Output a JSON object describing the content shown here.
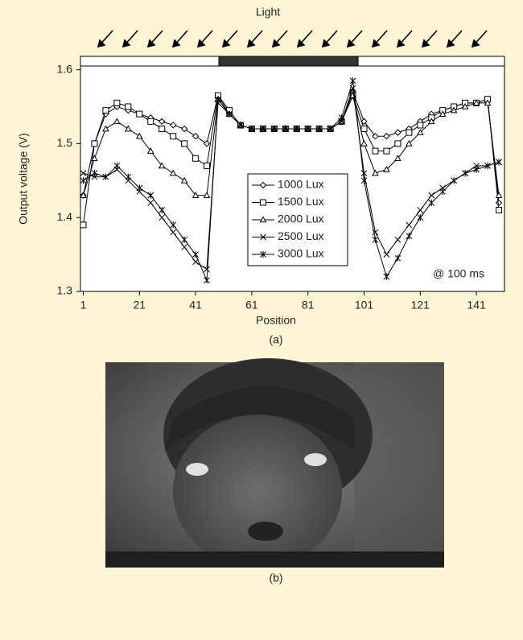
{
  "chart_data": {
    "type": "line",
    "title": "Light",
    "subtitle": "(a)",
    "annotation": "@ 100 ms",
    "xlabel": "Position",
    "ylabel": "Output voltage (V)",
    "xlim": [
      0,
      151
    ],
    "ylim": [
      1.3,
      1.605
    ],
    "xticks": [
      1,
      21,
      41,
      61,
      81,
      101,
      121,
      141
    ],
    "yticks": [
      {
        "value": 1.3,
        "label": "1.3"
      },
      {
        "value": 1.4,
        "label": "1.4"
      },
      {
        "value": 1.5,
        "label": "1.5"
      },
      {
        "value": 1.6,
        "label": "1.6"
      }
    ],
    "grid": false,
    "x": [
      1,
      5,
      9,
      13,
      17,
      21,
      25,
      29,
      33,
      37,
      41,
      45,
      49,
      53,
      57,
      61,
      65,
      69,
      73,
      77,
      81,
      85,
      89,
      93,
      97,
      101,
      105,
      109,
      113,
      117,
      121,
      125,
      129,
      133,
      137,
      141,
      145,
      149
    ],
    "series": [
      {
        "name": "1000 Lux",
        "color": "#000000",
        "marker": "diamond",
        "values": [
          1.43,
          1.5,
          1.54,
          1.55,
          1.545,
          1.54,
          1.535,
          1.53,
          1.525,
          1.52,
          1.51,
          1.5,
          1.565,
          1.54,
          1.525,
          1.52,
          1.52,
          1.52,
          1.52,
          1.52,
          1.52,
          1.52,
          1.52,
          1.53,
          1.57,
          1.53,
          1.51,
          1.51,
          1.515,
          1.52,
          1.53,
          1.54,
          1.545,
          1.55,
          1.555,
          1.555,
          1.56,
          1.42
        ]
      },
      {
        "name": "1500 Lux",
        "color": "#000000",
        "marker": "square",
        "values": [
          1.39,
          1.5,
          1.545,
          1.555,
          1.55,
          1.54,
          1.53,
          1.52,
          1.51,
          1.5,
          1.48,
          1.47,
          1.565,
          1.545,
          1.525,
          1.52,
          1.52,
          1.52,
          1.52,
          1.52,
          1.52,
          1.52,
          1.52,
          1.53,
          1.565,
          1.52,
          1.49,
          1.49,
          1.5,
          1.515,
          1.525,
          1.535,
          1.545,
          1.55,
          1.555,
          1.555,
          1.56,
          1.41
        ]
      },
      {
        "name": "2000 Lux",
        "color": "#000000",
        "marker": "triangle",
        "values": [
          1.43,
          1.48,
          1.52,
          1.53,
          1.52,
          1.51,
          1.49,
          1.47,
          1.46,
          1.45,
          1.43,
          1.43,
          1.56,
          1.54,
          1.525,
          1.52,
          1.52,
          1.52,
          1.52,
          1.52,
          1.52,
          1.52,
          1.52,
          1.53,
          1.565,
          1.5,
          1.46,
          1.465,
          1.48,
          1.5,
          1.515,
          1.53,
          1.54,
          1.545,
          1.55,
          1.555,
          1.555,
          1.43
        ]
      },
      {
        "name": "2500 Lux",
        "color": "#000000",
        "marker": "x",
        "values": [
          1.46,
          1.455,
          1.455,
          1.465,
          1.45,
          1.435,
          1.42,
          1.4,
          1.38,
          1.36,
          1.34,
          1.33,
          1.555,
          1.54,
          1.525,
          1.52,
          1.52,
          1.52,
          1.52,
          1.52,
          1.52,
          1.52,
          1.52,
          1.53,
          1.575,
          1.46,
          1.38,
          1.35,
          1.37,
          1.39,
          1.41,
          1.43,
          1.44,
          1.45,
          1.46,
          1.47,
          1.47,
          1.475
        ]
      },
      {
        "name": "3000 Lux",
        "color": "#000000",
        "marker": "asterisk",
        "values": [
          1.45,
          1.46,
          1.455,
          1.47,
          1.455,
          1.44,
          1.43,
          1.41,
          1.39,
          1.37,
          1.35,
          1.315,
          1.56,
          1.54,
          1.525,
          1.52,
          1.52,
          1.52,
          1.52,
          1.52,
          1.52,
          1.52,
          1.52,
          1.535,
          1.585,
          1.45,
          1.37,
          1.32,
          1.345,
          1.375,
          1.4,
          1.42,
          1.435,
          1.45,
          1.46,
          1.465,
          1.47,
          1.475
        ]
      }
    ],
    "image_caption": "(b)"
  }
}
